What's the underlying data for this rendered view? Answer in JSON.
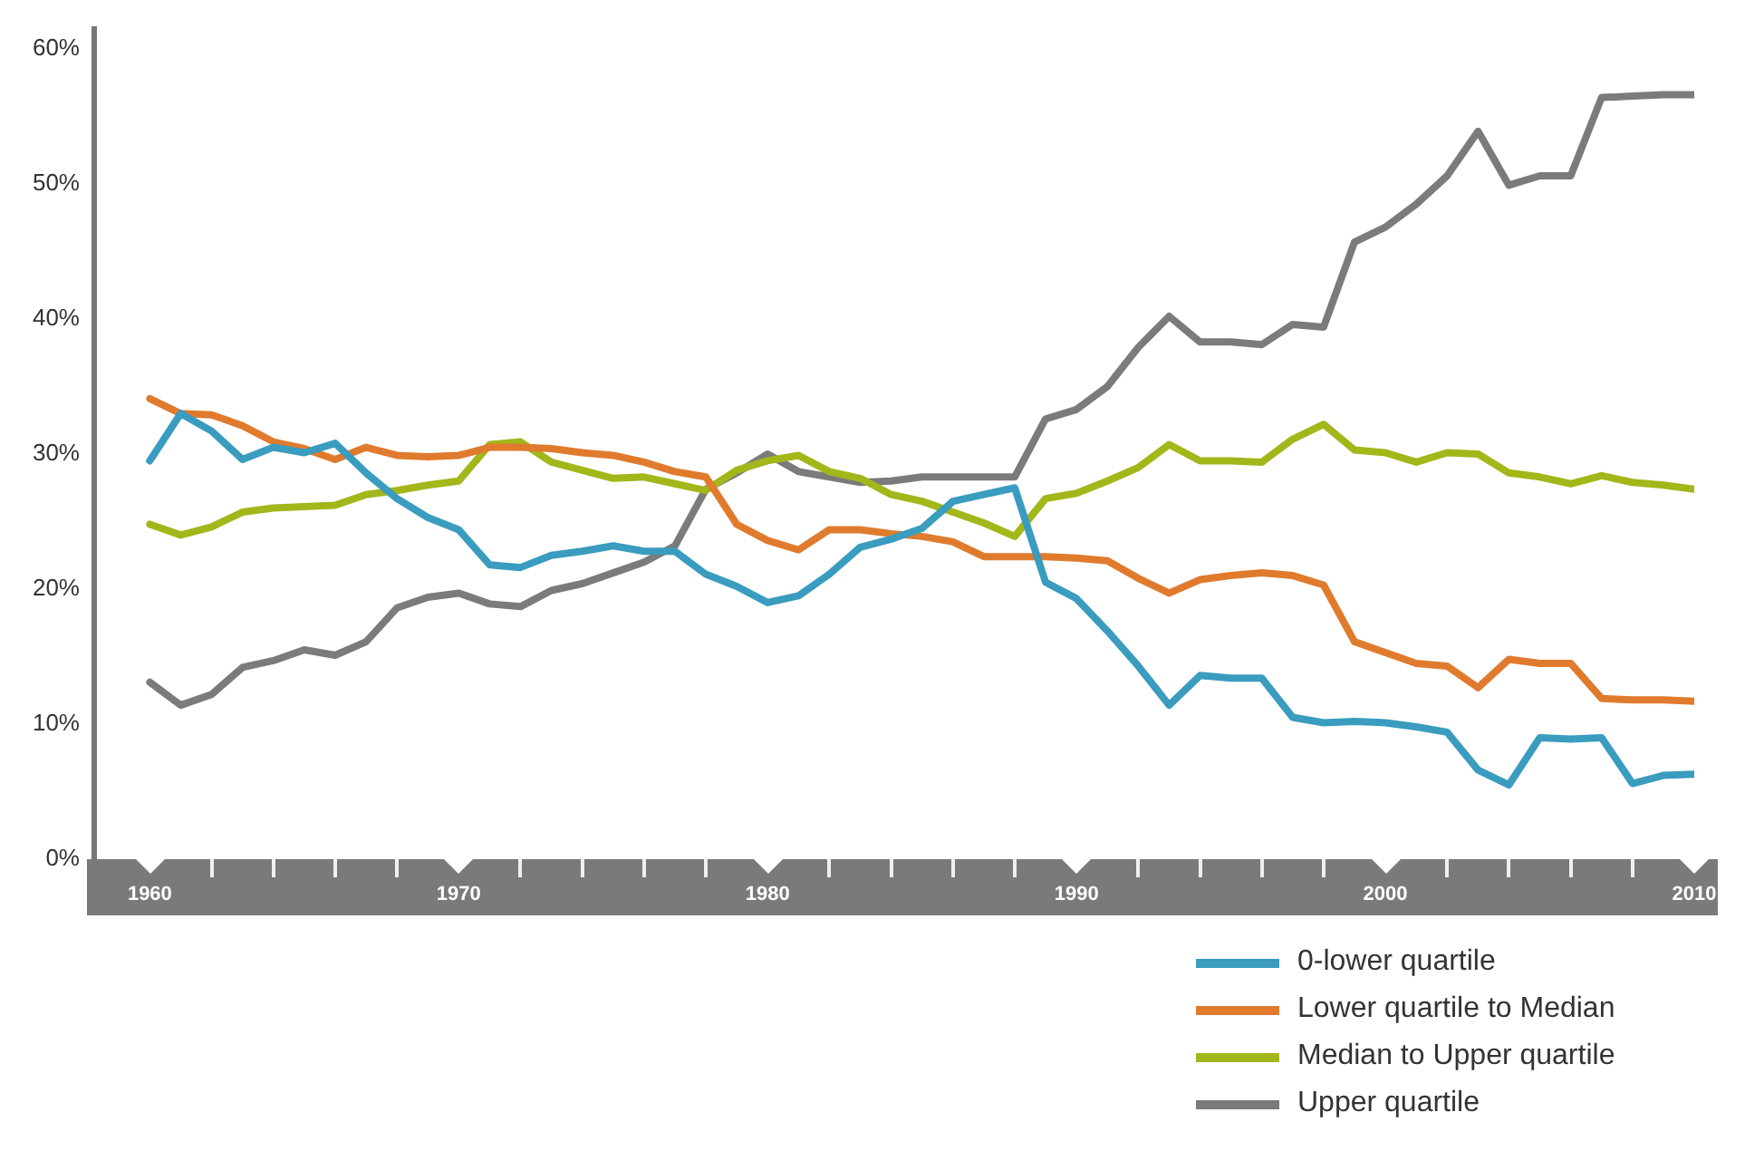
{
  "chart_data": {
    "type": "line",
    "x": [
      1960,
      1961,
      1962,
      1963,
      1964,
      1965,
      1966,
      1967,
      1968,
      1969,
      1970,
      1971,
      1972,
      1973,
      1974,
      1975,
      1976,
      1977,
      1978,
      1979,
      1980,
      1981,
      1982,
      1983,
      1984,
      1985,
      1986,
      1987,
      1988,
      1989,
      1990,
      1991,
      1992,
      1993,
      1994,
      1995,
      1996,
      1997,
      1998,
      1999,
      2000,
      2001,
      2002,
      2003,
      2004,
      2005,
      2006,
      2007,
      2008,
      2009,
      2010
    ],
    "series": [
      {
        "name": "0-lower quartile",
        "color": "#3a9cbf",
        "values": [
          29.5,
          33.0,
          31.7,
          29.6,
          30.5,
          30.1,
          30.8,
          28.6,
          26.7,
          25.3,
          24.4,
          21.8,
          21.6,
          22.5,
          22.8,
          23.2,
          22.8,
          22.8,
          21.1,
          20.2,
          19.0,
          19.5,
          21.1,
          23.1,
          23.7,
          24.5,
          26.5,
          27.0,
          27.5,
          20.5,
          19.3,
          16.9,
          14.3,
          11.4,
          13.6,
          13.4,
          13.4,
          10.5,
          10.1,
          10.2,
          10.1,
          9.8,
          9.4,
          6.6,
          5.5,
          9.0,
          8.9,
          9.0,
          5.6,
          6.2,
          6.3
        ]
      },
      {
        "name": "Lower quartile to Median",
        "color": "#e07b2e",
        "values": [
          34.1,
          33.0,
          32.9,
          32.1,
          30.9,
          30.4,
          29.6,
          30.5,
          29.9,
          29.8,
          29.9,
          30.5,
          30.5,
          30.4,
          30.1,
          29.9,
          29.4,
          28.7,
          28.3,
          24.8,
          23.6,
          22.9,
          24.4,
          24.4,
          24.1,
          23.9,
          23.5,
          22.4,
          22.4,
          22.4,
          22.3,
          22.1,
          20.8,
          19.7,
          20.7,
          21.0,
          21.2,
          21.0,
          20.3,
          16.1,
          15.3,
          14.5,
          14.3,
          12.7,
          14.8,
          14.5,
          14.5,
          11.9,
          11.8,
          11.8,
          11.7
        ]
      },
      {
        "name": "Median to Upper quartile",
        "color": "#a3b61a",
        "values": [
          24.8,
          24.0,
          24.6,
          25.7,
          26.0,
          26.1,
          26.2,
          27.0,
          27.3,
          27.7,
          28.0,
          30.7,
          30.9,
          29.4,
          28.8,
          28.2,
          28.3,
          27.8,
          27.3,
          28.8,
          29.5,
          29.9,
          28.7,
          28.2,
          27.0,
          26.5,
          25.7,
          24.9,
          23.9,
          26.7,
          27.1,
          28.0,
          29.0,
          30.7,
          29.5,
          29.5,
          29.4,
          31.1,
          32.2,
          30.3,
          30.1,
          29.4,
          30.1,
          30.0,
          28.6,
          28.3,
          27.8,
          28.4,
          27.9,
          27.7,
          27.4
        ]
      },
      {
        "name": "Upper quartile",
        "color": "#7b7b7b",
        "values": [
          13.1,
          11.4,
          12.2,
          14.2,
          14.7,
          15.5,
          15.1,
          16.1,
          18.6,
          19.4,
          19.7,
          18.9,
          18.7,
          19.9,
          20.4,
          21.2,
          22.0,
          23.2,
          27.4,
          28.6,
          30.0,
          28.7,
          28.3,
          27.9,
          28.0,
          28.3,
          28.3,
          28.3,
          28.3,
          32.6,
          33.3,
          35.0,
          37.9,
          40.2,
          38.3,
          38.3,
          38.1,
          39.6,
          39.4,
          45.7,
          46.8,
          48.5,
          50.6,
          53.9,
          49.9,
          50.6,
          50.6,
          56.4,
          56.5,
          56.6,
          56.6
        ]
      }
    ],
    "xlim": [
      1958.2,
      2010
    ],
    "xticks": [
      1960,
      {
        "value": 1962,
        "label": null
      },
      {
        "value": 1964,
        "label": null
      },
      {
        "value": 1966,
        "label": null
      },
      {
        "value": 1968,
        "label": null
      },
      1970,
      {
        "value": 1972,
        "label": null
      },
      {
        "value": 1974,
        "label": null
      },
      {
        "value": 1976,
        "label": null
      },
      {
        "value": 1978,
        "label": null
      },
      1980,
      {
        "value": 1982,
        "label": null
      },
      {
        "value": 1984,
        "label": null
      },
      {
        "value": 1986,
        "label": null
      },
      {
        "value": 1988,
        "label": null
      },
      1990,
      {
        "value": 1992,
        "label": null
      },
      {
        "value": 1994,
        "label": null
      },
      {
        "value": 1996,
        "label": null
      },
      {
        "value": 1998,
        "label": null
      },
      2000,
      {
        "value": 2002,
        "label": null
      },
      {
        "value": 2004,
        "label": null
      },
      {
        "value": 2006,
        "label": null
      },
      {
        "value": 2008,
        "label": null
      },
      2010
    ],
    "ylim": [
      0,
      61.5
    ],
    "yticks": [
      {
        "value": 0,
        "label": "0%"
      },
      {
        "value": 10,
        "label": "10%"
      },
      {
        "value": 20,
        "label": "20%"
      },
      {
        "value": 30,
        "label": "30%"
      },
      {
        "value": 40,
        "label": "40%"
      },
      {
        "value": 50,
        "label": "50%"
      },
      {
        "value": 60,
        "label": "60%"
      }
    ],
    "grid": false,
    "marker": "none",
    "legend": "bottom right"
  }
}
